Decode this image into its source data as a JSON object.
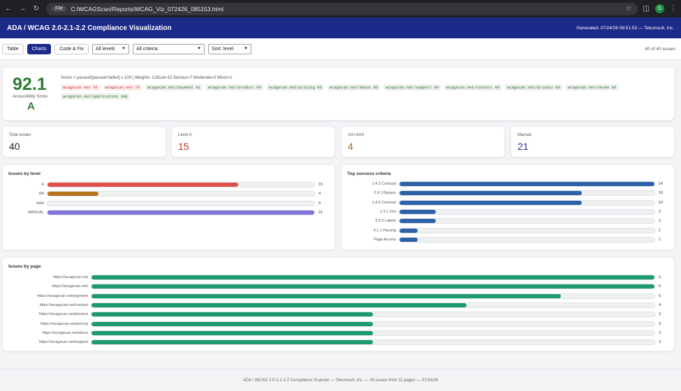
{
  "browser": {
    "file_label": "File",
    "url": "C:/WCAGScan/Reports/WCAG_Viz_072426_085153.html",
    "profile_initial": "G"
  },
  "header": {
    "title": "ADA / WCAG 2.0-2.1-2.2 Compliance Visualization",
    "generated": "Generated: 07/24/26 08:51:53 — Telconsult, Inc."
  },
  "toolbar": {
    "tabs": [
      {
        "label": "Table"
      },
      {
        "label": "Charts"
      },
      {
        "label": "Code & Fix"
      }
    ],
    "level_filter": "All levels",
    "criteria_filter": "All criteria",
    "sort": "Sort: level",
    "count": "40 of 40 issues"
  },
  "score": {
    "value": "92.1",
    "label": "Accessibility Score",
    "grade": "A",
    "formula": "Score = passed/(passed+failed) x 100 | Weights: Critical=10 Serious=7 Moderate=3 Minor=1",
    "pages": [
      {
        "text": "wcagscan.net 76",
        "warn": true
      },
      {
        "text": "wcagscan.net 76",
        "warn": true
      },
      {
        "text": "wcagscan.net/payment 91",
        "warn": false
      },
      {
        "text": "wcagscan.net/product 96",
        "warn": false
      },
      {
        "text": "wcagscan.net/pricing 96",
        "warn": false
      },
      {
        "text": "wcagscan.net/about 96",
        "warn": false
      },
      {
        "text": "wcagscan.net/support 96",
        "warn": false
      },
      {
        "text": "wcagscan.net/contact 96",
        "warn": false
      },
      {
        "text": "wcagscan.net/privacy 96",
        "warn": false
      },
      {
        "text": "wcagscan.net/terms 96",
        "warn": false
      },
      {
        "text": "wcagscan.net/application 100",
        "warn": false
      }
    ]
  },
  "stats": [
    {
      "label": "Total issues",
      "value": "40",
      "color": "#222222"
    },
    {
      "label": "Level A",
      "value": "15",
      "color": "#c62828"
    },
    {
      "label": "AA+AAA",
      "value": "4",
      "color": "#a9651a"
    },
    {
      "label": "Manual",
      "value": "21",
      "color": "#2b2f8c"
    }
  ],
  "charts": {
    "by_level": {
      "title": "Issues by level",
      "max": 21,
      "rows": [
        {
          "label": "A",
          "value": 15,
          "color": "#e0504a"
        },
        {
          "label": "AA",
          "value": 4,
          "color": "#b8741c"
        },
        {
          "label": "AAA",
          "value": 0,
          "color": "#e0504a"
        },
        {
          "label": "MANUAL",
          "value": 21,
          "color": "#8074d8"
        }
      ]
    },
    "top_criteria": {
      "title": "Top success criteria",
      "max": 14,
      "color": "#2c62a8",
      "rows": [
        {
          "label": "1.4.3 Contrast",
          "value": 14
        },
        {
          "label": "2.4.1 Bypass",
          "value": 10
        },
        {
          "label": "1.4.6 Contrast",
          "value": 10
        },
        {
          "label": "1.3.1 Info",
          "value": 2
        },
        {
          "label": "3.3.2 Labels",
          "value": 2
        },
        {
          "label": "4.1.1 Parsing",
          "value": 1
        },
        {
          "label": "Page Access",
          "value": 1
        }
      ]
    },
    "by_page": {
      "title": "Issues by page",
      "max": 6,
      "color": "#1e9a72",
      "rows": [
        {
          "label": "https://wcagscan.net",
          "value": 6
        },
        {
          "label": "https://wcagscan.net/",
          "value": 6
        },
        {
          "label": "https://wcagscan.net/payment",
          "value": 5
        },
        {
          "label": "https://wcagscan.net/contact",
          "value": 4
        },
        {
          "label": "https://wcagscan.net/product",
          "value": 3
        },
        {
          "label": "https://wcagscan.net/pricing",
          "value": 3
        },
        {
          "label": "https://wcagscan.net/about",
          "value": 3
        },
        {
          "label": "https://wcagscan.net/support",
          "value": 3
        }
      ]
    }
  },
  "footer": "ADA / WCAG 2.0-2.1-2.2 Compliance Scanner — Telconsult, Inc. — 40 issues from 11 pages — 07/24/26"
}
